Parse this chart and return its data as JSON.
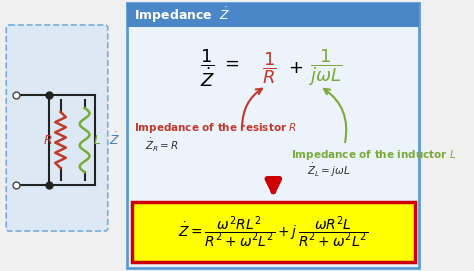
{
  "bg_color": "#f0f0f0",
  "panel_bg": "#edf3fb",
  "title_bg": "#4a86c8",
  "title_color": "#ffffff",
  "color_resistor": "#c0392b",
  "color_inductor": "#7aaa3a",
  "color_arrow_big": "#cc0000",
  "color_bottom_box": "#ffff00",
  "color_bottom_border": "#cc0000",
  "color_panel_border": "#5b9bd5",
  "circuit_bg": "#dce9f5",
  "circuit_border": "#7aabdb",
  "fig_w": 4.74,
  "fig_h": 2.71,
  "dpi": 100
}
